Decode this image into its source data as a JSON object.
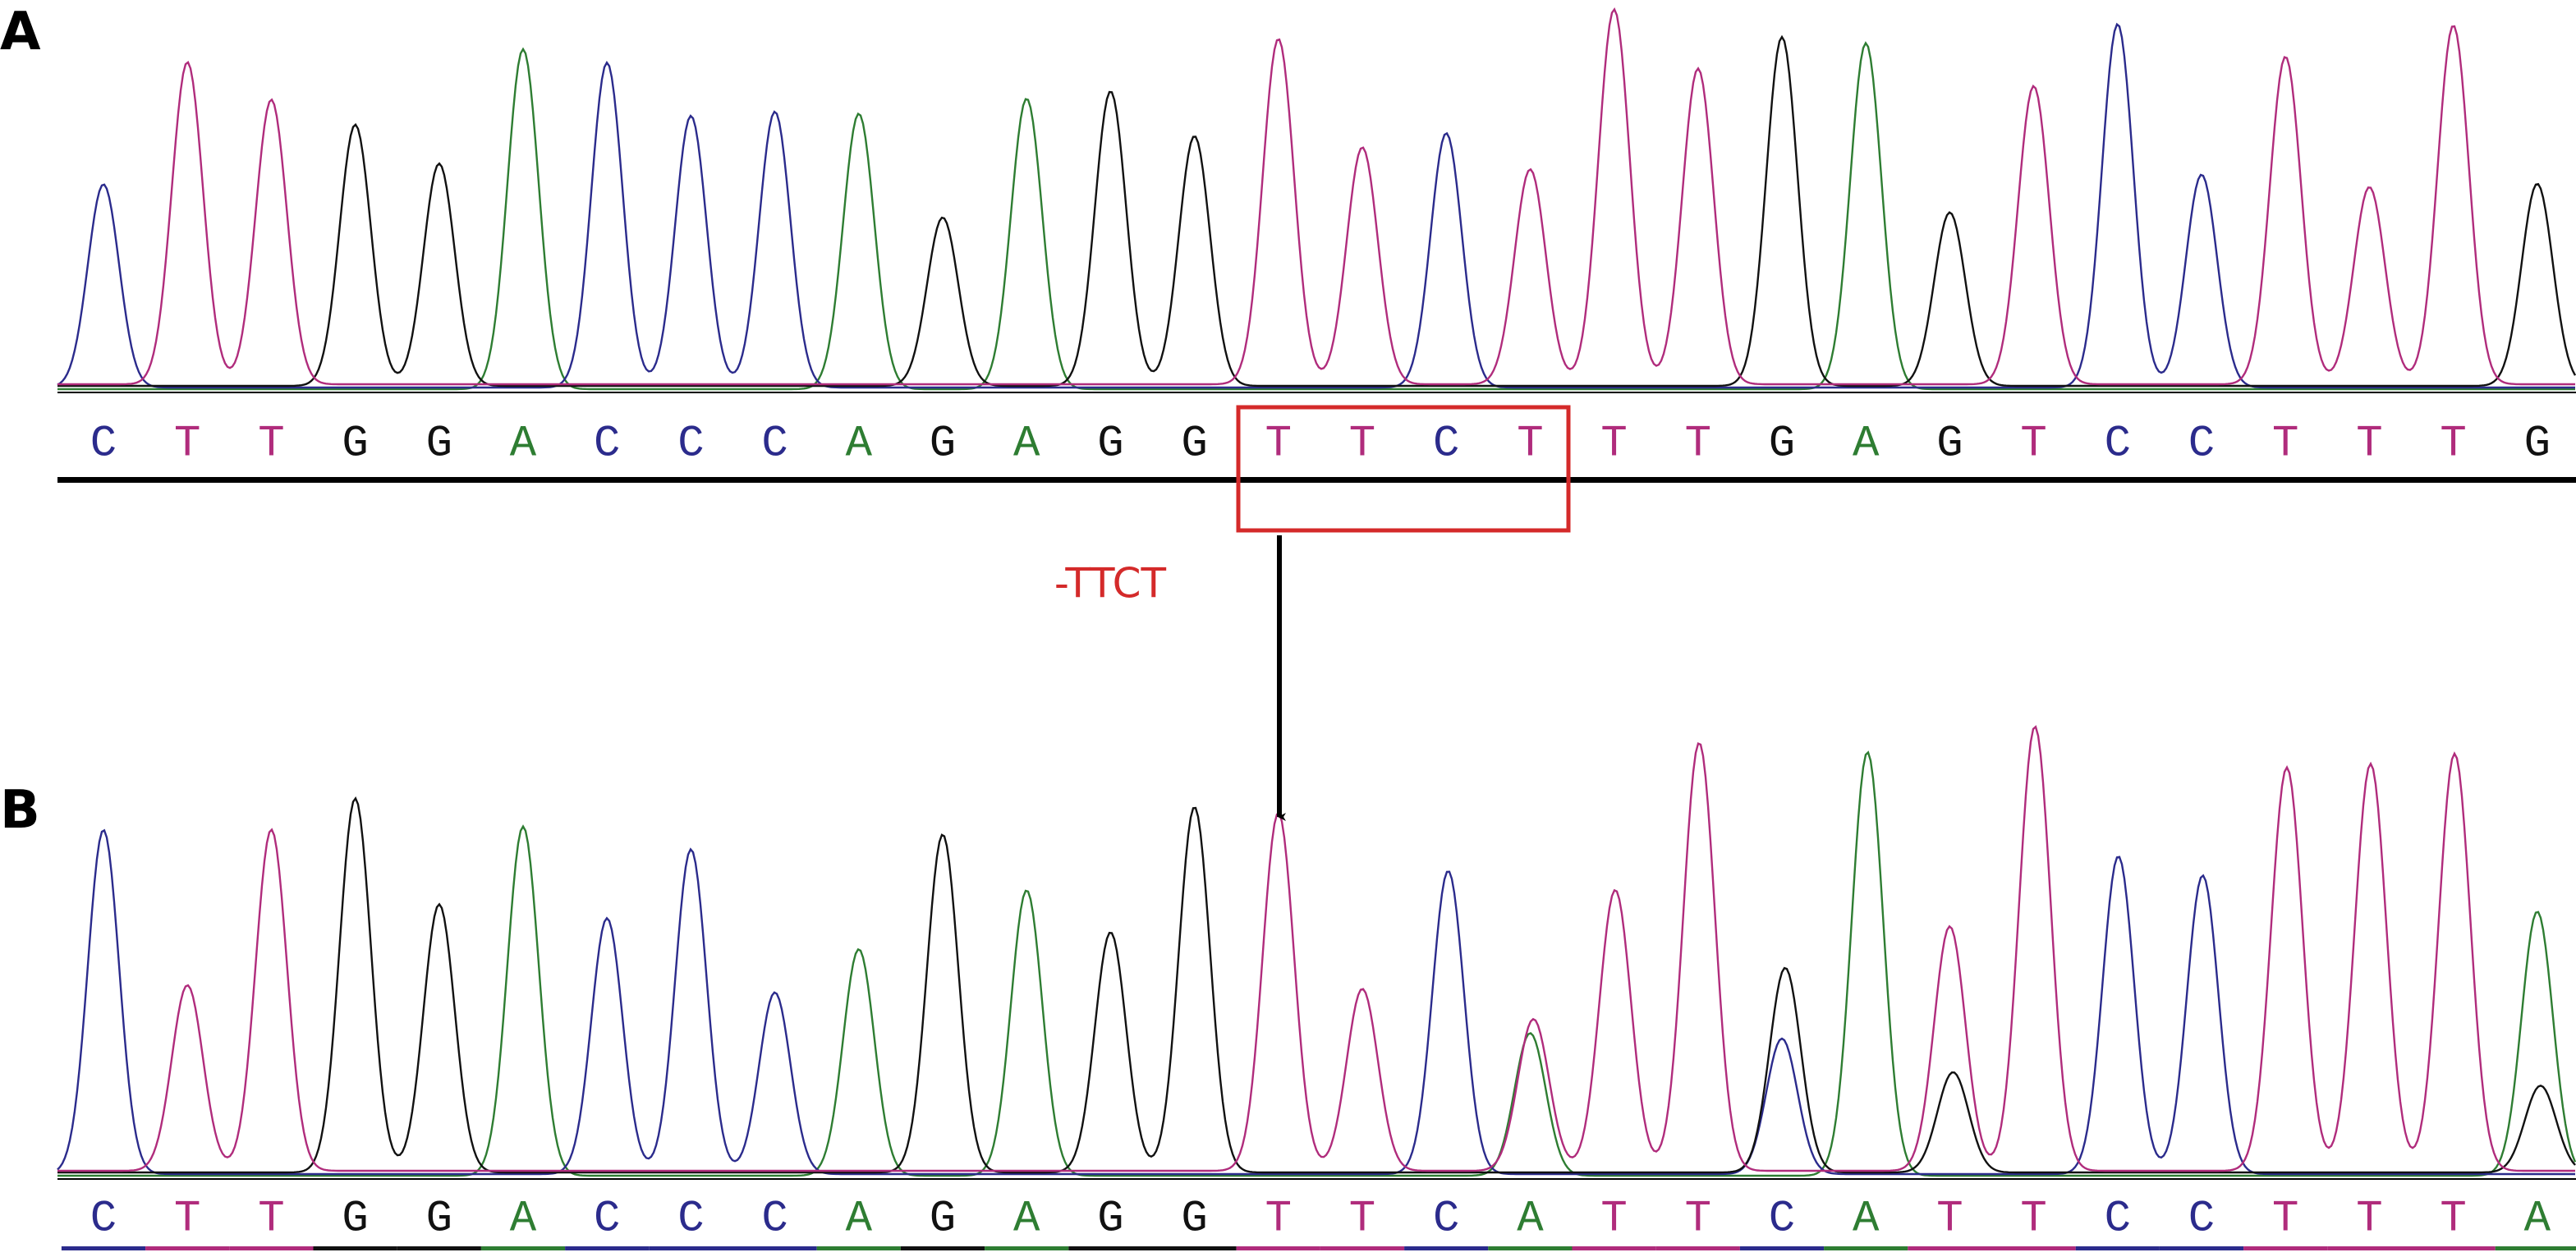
{
  "panels": [
    {
      "label": "A",
      "sequence": [
        "C",
        "T",
        "T",
        "G",
        "G",
        "A",
        "C",
        "C",
        "C",
        "A",
        "G",
        "A",
        "G",
        "G",
        "T",
        "T",
        "C",
        "T",
        "T",
        "T",
        "G",
        "A",
        "G",
        "T",
        "C",
        "C",
        "T",
        "T",
        "T",
        "G"
      ]
    },
    {
      "label": "B",
      "sequence": [
        "C",
        "T",
        "T",
        "G",
        "G",
        "A",
        "C",
        "C",
        "C",
        "A",
        "G",
        "A",
        "G",
        "G",
        "T",
        "T",
        "C",
        "A",
        "T",
        "T",
        "C",
        "A",
        "T",
        "T",
        "C",
        "C",
        "T",
        "T",
        "T",
        "A"
      ]
    }
  ],
  "annotation": "-TTCT"
}
